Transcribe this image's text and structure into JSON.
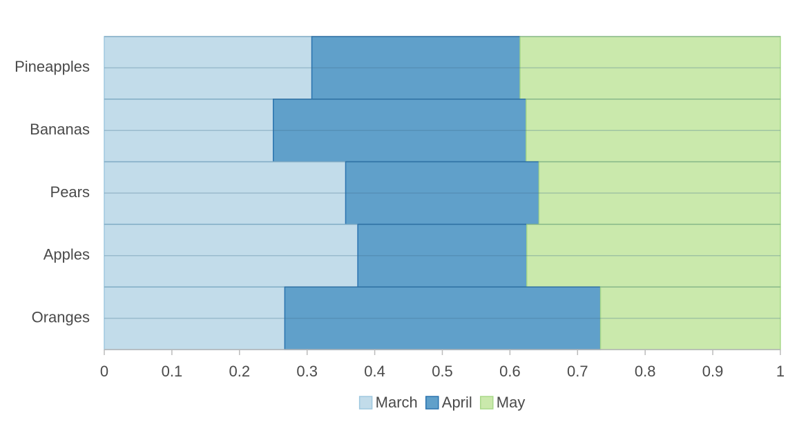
{
  "chart_data": {
    "type": "bar",
    "orientation": "horizontal",
    "stacked": true,
    "categories": [
      "Pineapples",
      "Bananas",
      "Pears",
      "Apples",
      "Oranges"
    ],
    "series": [
      {
        "name": "March",
        "color": "#c2dcea",
        "values": [
          0.307,
          0.25,
          0.357,
          0.375,
          0.267
        ]
      },
      {
        "name": "April",
        "color": "#60a0ca",
        "values": [
          0.308,
          0.374,
          0.286,
          0.25,
          0.467
        ]
      },
      {
        "name": "May",
        "color": "#cae9ac",
        "values": [
          0.385,
          0.376,
          0.357,
          0.375,
          0.266
        ]
      }
    ],
    "xlim": [
      0,
      1
    ],
    "xticks": [
      0,
      0.1,
      0.2,
      0.3,
      0.4,
      0.5,
      0.6,
      0.7,
      0.8,
      0.9,
      1
    ],
    "legend": "bottom"
  }
}
